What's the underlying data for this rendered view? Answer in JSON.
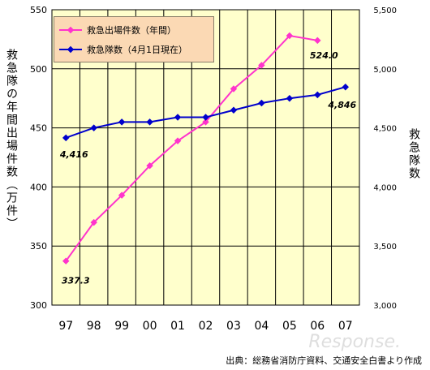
{
  "chart_data": {
    "type": "line",
    "categories": [
      "97",
      "98",
      "99",
      "00",
      "01",
      "02",
      "03",
      "04",
      "05",
      "06",
      "07"
    ],
    "left_axis": {
      "label": "救急隊の年間出場件数（万件）",
      "ticks": [
        "300",
        "350",
        "400",
        "450",
        "500",
        "550"
      ],
      "ylim": [
        300,
        550
      ]
    },
    "right_axis": {
      "label": "救急隊数",
      "ticks": [
        "3,000",
        "3,500",
        "4,000",
        "4,500",
        "5,000",
        "5,500"
      ],
      "ylim": [
        3000,
        5500
      ]
    },
    "series": [
      {
        "name": "救急出場件数（年間）",
        "axis": "left",
        "color": "#ff33cc",
        "values": [
          337.3,
          370,
          393,
          418,
          439,
          455,
          483,
          503,
          528,
          524.0,
          null
        ]
      },
      {
        "name": "救急隊数（4月1日現在）",
        "axis": "right",
        "color": "#0000cc",
        "values": [
          4416,
          4500,
          4550,
          4550,
          4590,
          4590,
          4650,
          4710,
          4750,
          4780,
          4846
        ]
      }
    ],
    "data_labels": [
      "337.3",
      "524.0",
      "4,416",
      "4,846"
    ],
    "grid": true,
    "legend": "top-left",
    "plot_background": "#ffffcc"
  },
  "source_text": "出典：総務省消防庁資料、交通安全白書より作成",
  "watermark_text": "Response."
}
